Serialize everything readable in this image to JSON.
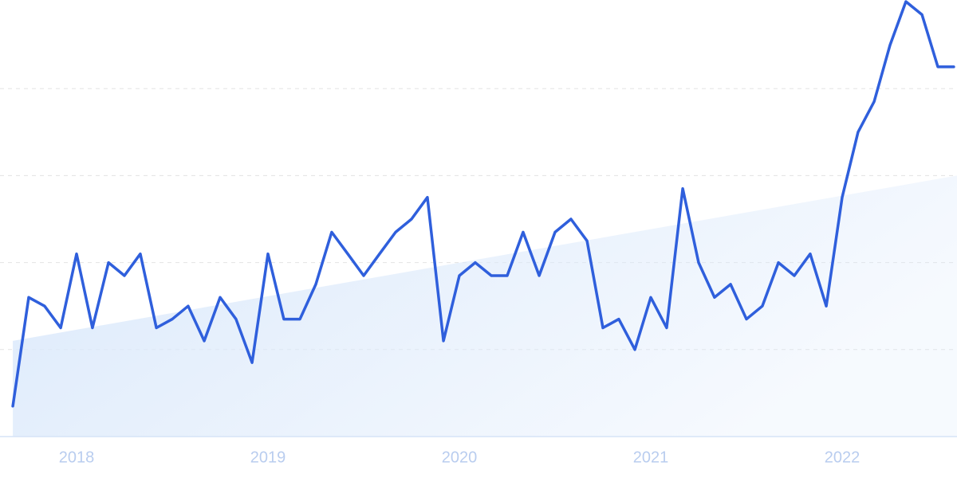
{
  "chart_data": {
    "type": "line",
    "x": [
      2017.667,
      2017.75,
      2017.833,
      2017.917,
      2018,
      2018.083,
      2018.167,
      2018.25,
      2018.333,
      2018.417,
      2018.5,
      2018.583,
      2018.667,
      2018.75,
      2018.833,
      2018.917,
      2019,
      2019.083,
      2019.167,
      2019.25,
      2019.333,
      2019.417,
      2019.5,
      2019.583,
      2019.667,
      2019.75,
      2019.833,
      2019.917,
      2020,
      2020.083,
      2020.167,
      2020.25,
      2020.333,
      2020.417,
      2020.5,
      2020.583,
      2020.667,
      2020.75,
      2020.833,
      2020.917,
      2021,
      2021.083,
      2021.167,
      2021.25,
      2021.333,
      2021.417,
      2021.5,
      2021.583,
      2021.667,
      2021.75,
      2021.833,
      2021.917,
      2022,
      2022.083,
      2022.167,
      2022.25,
      2022.333,
      2022.417,
      2022.5,
      2022.583
    ],
    "series": [
      {
        "color": "#2f5fdc",
        "values": [
          7,
          32,
          30,
          25,
          42,
          25,
          40,
          37,
          42,
          25,
          27,
          30,
          22,
          32,
          27,
          17,
          42,
          27,
          27,
          35,
          47,
          42,
          37,
          42,
          47,
          50,
          55,
          22,
          37,
          40,
          37,
          37,
          47,
          37,
          47,
          50,
          45,
          25,
          27,
          20,
          32,
          25,
          57,
          40,
          32,
          35,
          27,
          30,
          40,
          37,
          42,
          30,
          55,
          70,
          77,
          90,
          100,
          97,
          85,
          85
        ]
      }
    ],
    "trend": {
      "x": [
        2017.667,
        2022.6
      ],
      "values": [
        22,
        60
      ],
      "color": "#dbe9fb"
    },
    "xlim": [
      2017.6,
      2022.6
    ],
    "xticks": [
      2018,
      2019,
      2020,
      2021,
      2022
    ],
    "ylim": [
      0,
      100
    ],
    "yticks": [
      20,
      40,
      60,
      80
    ],
    "grid": true
  }
}
